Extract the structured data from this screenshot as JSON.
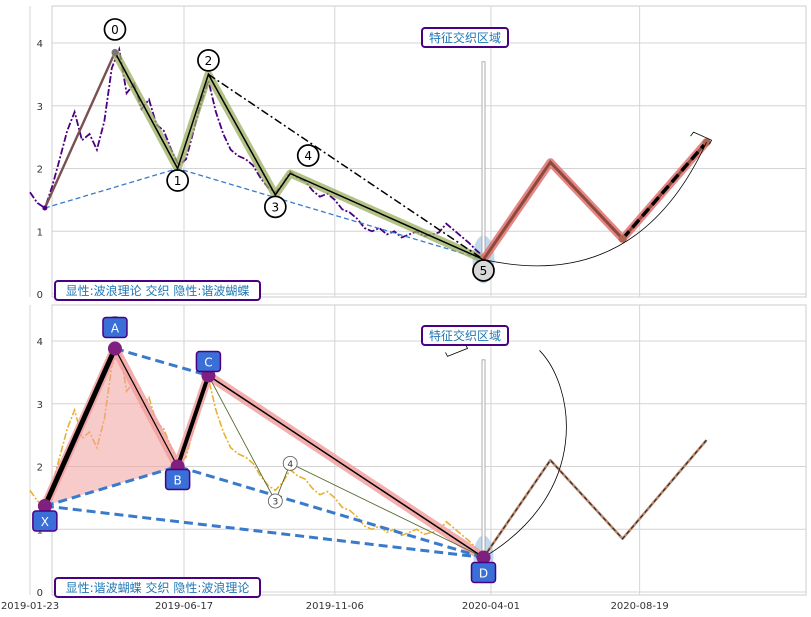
{
  "chart_data": [
    {
      "type": "line",
      "panel": "top",
      "ylim": [
        -0.05,
        4.5
      ],
      "yticks": [
        "0",
        "1",
        "2",
        "3",
        "4"
      ],
      "grid": true,
      "colors": {
        "price": "#4b0082",
        "wave": "#000000",
        "wave_halo": "#9aad5e",
        "projection": "#e07070",
        "projection_core": "#8b4a3a",
        "base_line": "#3a7acb",
        "marker_box_border": "#4b0082",
        "marker_box_text": "#1f77b4"
      },
      "price_series": [
        {
          "date": "2019-01-23",
          "y": 1.62
        },
        {
          "date": "2019-01-30",
          "y": 1.45
        },
        {
          "date": "2019-02-06",
          "y": 1.37
        },
        {
          "date": "2019-02-13",
          "y": 1.72
        },
        {
          "date": "2019-02-20",
          "y": 2.15
        },
        {
          "date": "2019-02-27",
          "y": 2.6
        },
        {
          "date": "2019-03-06",
          "y": 2.9
        },
        {
          "date": "2019-03-13",
          "y": 2.45
        },
        {
          "date": "2019-03-20",
          "y": 2.55
        },
        {
          "date": "2019-03-27",
          "y": 2.3
        },
        {
          "date": "2019-04-03",
          "y": 2.75
        },
        {
          "date": "2019-04-10",
          "y": 3.6
        },
        {
          "date": "2019-04-17",
          "y": 3.9
        },
        {
          "date": "2019-04-24",
          "y": 3.2
        },
        {
          "date": "2019-05-01",
          "y": 3.35
        },
        {
          "date": "2019-05-08",
          "y": 2.95
        },
        {
          "date": "2019-05-15",
          "y": 3.1
        },
        {
          "date": "2019-05-22",
          "y": 2.7
        },
        {
          "date": "2019-05-29",
          "y": 2.6
        },
        {
          "date": "2019-06-05",
          "y": 2.3
        },
        {
          "date": "2019-06-12",
          "y": 2.05
        },
        {
          "date": "2019-06-19",
          "y": 2.15
        },
        {
          "date": "2019-06-26",
          "y": 2.6
        },
        {
          "date": "2019-07-03",
          "y": 3.05
        },
        {
          "date": "2019-07-10",
          "y": 3.4
        },
        {
          "date": "2019-07-17",
          "y": 2.9
        },
        {
          "date": "2019-07-24",
          "y": 2.55
        },
        {
          "date": "2019-07-31",
          "y": 2.3
        },
        {
          "date": "2019-08-07",
          "y": 2.2
        },
        {
          "date": "2019-08-14",
          "y": 2.15
        },
        {
          "date": "2019-08-21",
          "y": 2.05
        },
        {
          "date": "2019-08-28",
          "y": 1.85
        },
        {
          "date": "2019-09-04",
          "y": 1.7
        },
        {
          "date": "2019-09-11",
          "y": 1.62
        },
        {
          "date": "2019-09-18",
          "y": 1.75
        },
        {
          "date": "2019-09-25",
          "y": 1.95
        },
        {
          "date": "2019-10-02",
          "y": 1.85
        },
        {
          "date": "2019-10-09",
          "y": 1.8
        },
        {
          "date": "2019-10-16",
          "y": 1.65
        },
        {
          "date": "2019-10-23",
          "y": 1.55
        },
        {
          "date": "2019-10-30",
          "y": 1.6
        },
        {
          "date": "2019-11-06",
          "y": 1.5
        },
        {
          "date": "2019-11-13",
          "y": 1.35
        },
        {
          "date": "2019-11-20",
          "y": 1.3
        },
        {
          "date": "2019-11-27",
          "y": 1.2
        },
        {
          "date": "2019-12-04",
          "y": 1.05
        },
        {
          "date": "2019-12-11",
          "y": 1.0
        },
        {
          "date": "2019-12-18",
          "y": 1.05
        },
        {
          "date": "2019-12-25",
          "y": 0.95
        },
        {
          "date": "2020-01-01",
          "y": 1.0
        },
        {
          "date": "2020-01-08",
          "y": 0.9
        },
        {
          "date": "2020-01-15",
          "y": 0.95
        },
        {
          "date": "2020-01-22",
          "y": 1.0
        },
        {
          "date": "2020-01-29",
          "y": 0.92
        },
        {
          "date": "2020-02-05",
          "y": 0.95
        },
        {
          "date": "2020-02-12",
          "y": 0.98
        },
        {
          "date": "2020-02-19",
          "y": 1.12
        },
        {
          "date": "2020-02-26",
          "y": 1.02
        },
        {
          "date": "2020-03-04",
          "y": 0.92
        },
        {
          "date": "2020-03-11",
          "y": 0.82
        },
        {
          "date": "2020-03-18",
          "y": 0.7
        },
        {
          "date": "2020-03-25",
          "y": 0.6
        }
      ],
      "wave_points": [
        {
          "label": "0",
          "date": "2019-04-13",
          "y": 3.85
        },
        {
          "label": "1",
          "date": "2019-06-11",
          "y": 2.0
        },
        {
          "label": "2",
          "date": "2019-07-10",
          "y": 3.5
        },
        {
          "label": "3",
          "date": "2019-09-11",
          "y": 1.58
        },
        {
          "label": "4",
          "date": "2019-09-25",
          "y": 1.92
        },
        {
          "label": "5",
          "date": "2020-03-25",
          "y": 0.55
        }
      ],
      "projection": [
        {
          "date": "2020-03-25",
          "y": 0.55
        },
        {
          "date": "2020-05-27",
          "y": 2.1
        },
        {
          "date": "2020-08-03",
          "y": 0.88
        },
        {
          "date": "2020-10-21",
          "y": 2.42
        }
      ],
      "base_line": [
        {
          "date": "2019-02-06",
          "y": 1.37
        },
        {
          "date": "2019-06-11",
          "y": 2.0
        },
        {
          "date": "2020-03-25",
          "y": 0.55
        }
      ],
      "box_text": "特征交织区域",
      "legend_text": "显性:波浪理论 交织 隐性:谐波蝴蝶"
    },
    {
      "type": "line",
      "panel": "bottom",
      "ylim": [
        -0.05,
        4.5
      ],
      "yticks": [
        "0",
        "1",
        "2",
        "3",
        "4"
      ],
      "xticks": [
        "2019-01-23",
        "2019-06-17",
        "2019-11-06",
        "2020-04-01",
        "2020-08-19"
      ],
      "grid": true,
      "colors": {
        "price": "#e8b030",
        "pattern_fill": "#f2a0a0",
        "pattern_line": "#000000",
        "base_line": "#3a7acb",
        "vertex": "#7f1f7f",
        "label_box": "#3a6fd8",
        "label_border": "#4b0082",
        "projection_dash": "#d2691e",
        "projection_core": "#b8866a"
      },
      "pattern_points": [
        {
          "label": "X",
          "date": "2019-02-06",
          "y": 1.37
        },
        {
          "label": "A",
          "date": "2019-04-13",
          "y": 3.88
        },
        {
          "label": "B",
          "date": "2019-06-11",
          "y": 2.0
        },
        {
          "label": "C",
          "date": "2019-07-10",
          "y": 3.45
        },
        {
          "label": "D",
          "date": "2020-03-25",
          "y": 0.55
        }
      ],
      "wave_small": [
        {
          "label": "3",
          "date": "2019-09-11",
          "y": 1.45
        },
        {
          "label": "4",
          "date": "2019-09-25",
          "y": 2.05
        }
      ],
      "projection": [
        {
          "date": "2020-03-25",
          "y": 0.55
        },
        {
          "date": "2020-05-27",
          "y": 2.1
        },
        {
          "date": "2020-08-03",
          "y": 0.85
        },
        {
          "date": "2020-10-21",
          "y": 2.42
        }
      ],
      "box_text": "特征交织区域",
      "legend_text": "显性:谐波蝴蝶 交织 隐性:波浪理论"
    }
  ]
}
